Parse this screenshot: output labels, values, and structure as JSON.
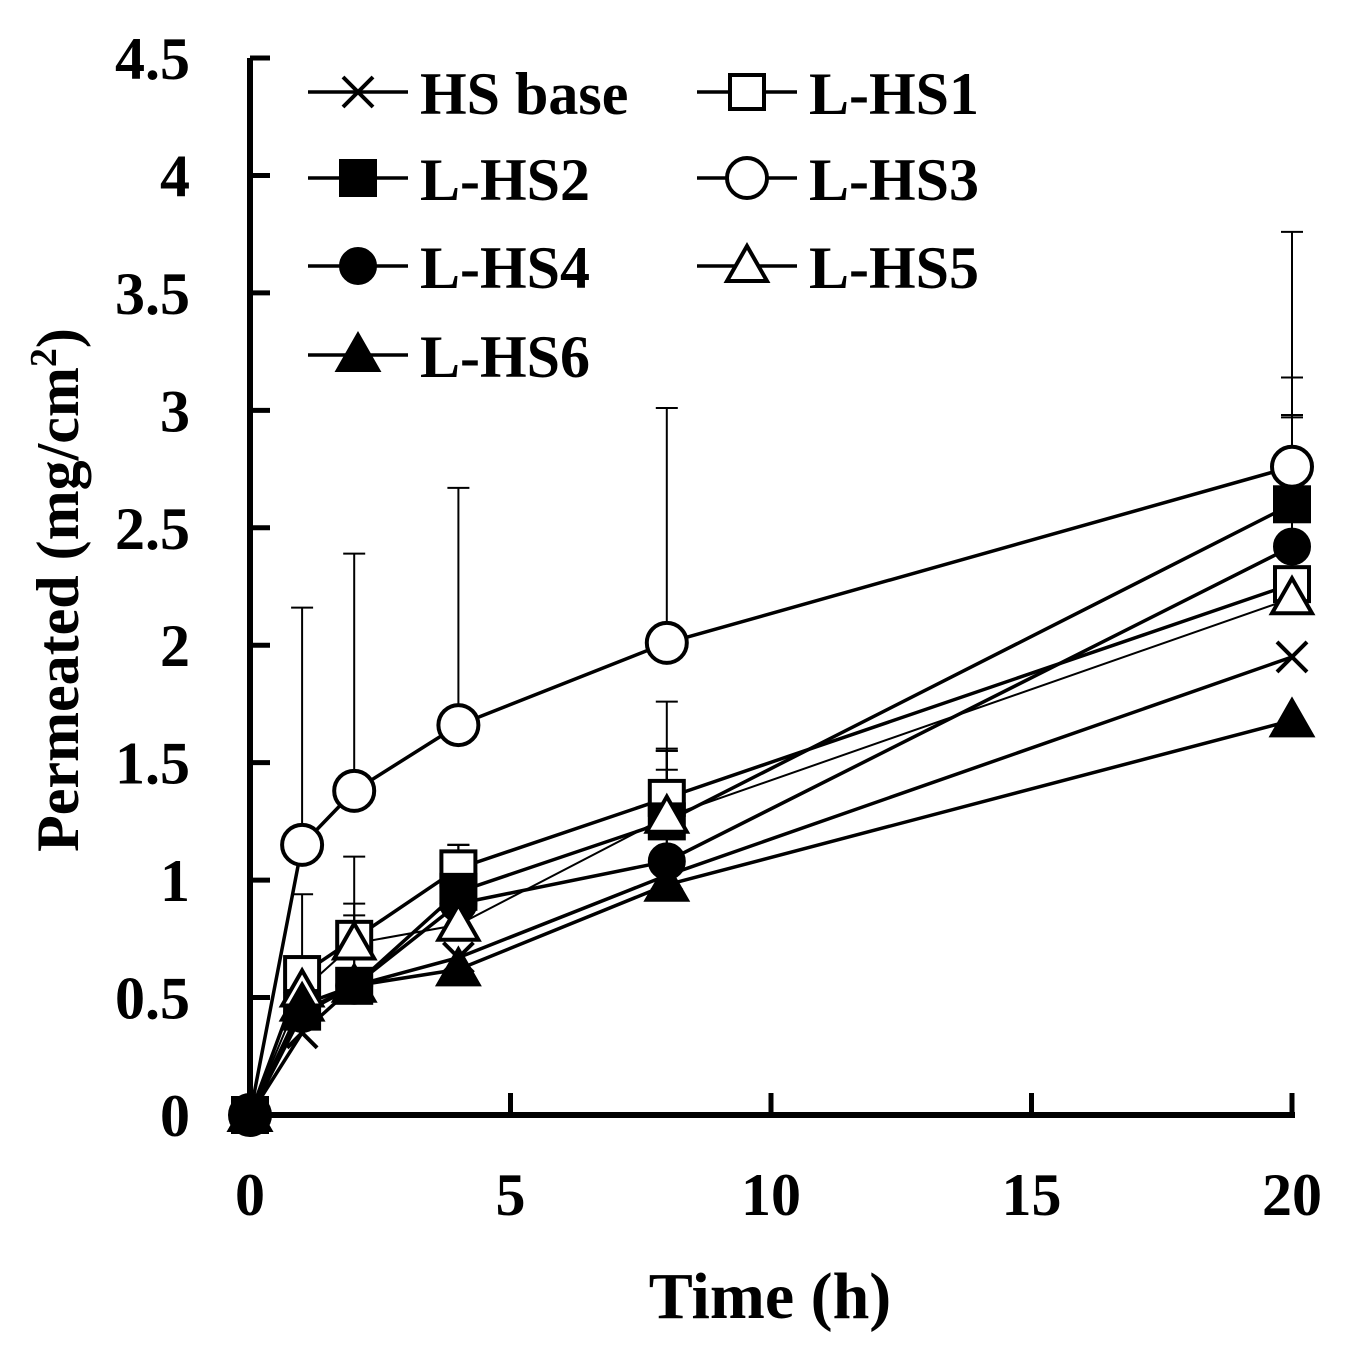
{
  "chart_data": {
    "type": "line",
    "title": "",
    "xlabel": "Time (h)",
    "ylabel_main": "Permeated (mg/cm",
    "ylabel_sup": "2",
    "ylabel_close": ")",
    "xlim": [
      0,
      20
    ],
    "ylim": [
      0,
      4.5
    ],
    "xticks": [
      0,
      5,
      10,
      15,
      20
    ],
    "xtick_labels": [
      "0",
      "5",
      "10",
      "15",
      "20"
    ],
    "yticks": [
      0,
      0.5,
      1,
      1.5,
      2,
      2.5,
      3,
      3.5,
      4,
      4.5
    ],
    "ytick_labels": [
      "0",
      "0.5",
      "1",
      "1.5",
      "2",
      "2.5",
      "3",
      "3.5",
      "4",
      "4.5"
    ],
    "grid": false,
    "legend_position": "top-left",
    "x": [
      0,
      1,
      2,
      4,
      8,
      20
    ],
    "series": [
      {
        "name": "HS base",
        "marker": "x",
        "values": [
          0,
          0.35,
          0.55,
          0.67,
          1.02,
          1.95
        ],
        "error": [
          0,
          0,
          0,
          0,
          0.54,
          0
        ]
      },
      {
        "name": "L-HS1",
        "marker": "square-open",
        "values": [
          0,
          0.6,
          0.75,
          1.05,
          1.35,
          2.26
        ],
        "error": [
          0,
          0.34,
          0.35,
          0.1,
          0.41,
          0.88
        ]
      },
      {
        "name": "L-HS2",
        "marker": "square-filled",
        "values": [
          0,
          0.44,
          0.55,
          0.95,
          1.25,
          2.6
        ],
        "error": [
          0,
          0,
          0.3,
          0.2,
          0.3,
          0.38
        ]
      },
      {
        "name": "L-HS3",
        "marker": "circle-open",
        "values": [
          0,
          1.15,
          1.38,
          1.66,
          2.01,
          2.76
        ],
        "error": [
          0,
          1.01,
          1.01,
          1.01,
          1.0,
          1.0
        ]
      },
      {
        "name": "L-HS4",
        "marker": "circle-filled",
        "values": [
          0,
          0.43,
          0.55,
          0.9,
          1.08,
          2.42
        ],
        "error": [
          0,
          0,
          0.35,
          0.25,
          0.47,
          0.55
        ]
      },
      {
        "name": "L-HS5",
        "marker": "triangle-open",
        "values": [
          0,
          0.53,
          0.73,
          0.81,
          1.27,
          2.2
        ],
        "error": [
          0,
          0,
          0,
          0.3,
          0.2,
          0.78
        ]
      },
      {
        "name": "L-HS6",
        "marker": "triangle-filled",
        "values": [
          0,
          0.47,
          0.55,
          0.62,
          0.98,
          1.68
        ],
        "error": [
          0,
          0,
          0,
          0,
          0,
          0
        ]
      }
    ]
  }
}
